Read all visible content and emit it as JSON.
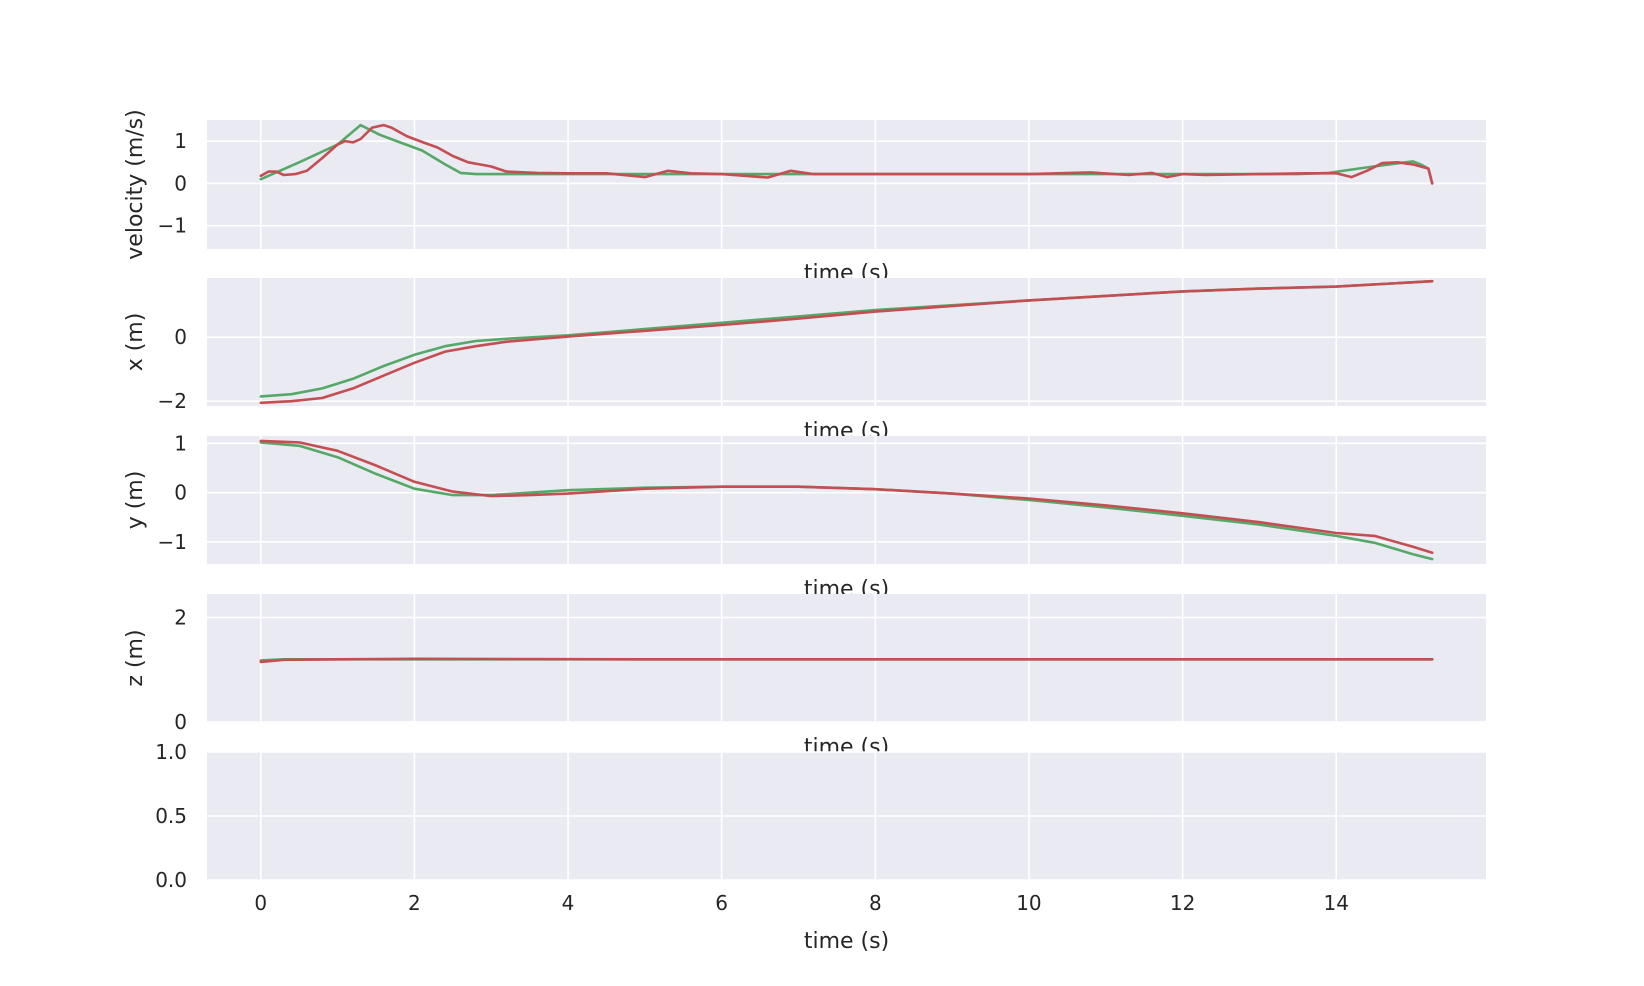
{
  "chart_data": [
    {
      "type": "line",
      "xlabel": "time (s)",
      "ylabel": "velocity (m/s)",
      "ylim": [
        -1.55,
        1.5
      ],
      "yticks": [
        -1,
        0,
        1
      ],
      "xticks": [
        0,
        2,
        4,
        6,
        8,
        10,
        12,
        14
      ],
      "grid": true,
      "series": [
        {
          "color": "#55a868",
          "points": [
            [
              0,
              0.1
            ],
            [
              0.5,
              0.5
            ],
            [
              1.0,
              0.92
            ],
            [
              1.3,
              1.38
            ],
            [
              1.55,
              1.15
            ],
            [
              1.8,
              0.98
            ],
            [
              2.1,
              0.78
            ],
            [
              2.4,
              0.45
            ],
            [
              2.6,
              0.25
            ],
            [
              2.8,
              0.22
            ],
            [
              3.2,
              0.22
            ],
            [
              5,
              0.22
            ],
            [
              10,
              0.22
            ],
            [
              13.5,
              0.22
            ],
            [
              13.9,
              0.25
            ],
            [
              14.4,
              0.38
            ],
            [
              14.9,
              0.5
            ],
            [
              15.0,
              0.52
            ],
            [
              15.1,
              0.45
            ],
            [
              15.2,
              0.35
            ],
            [
              15.25,
              0.0
            ]
          ]
        },
        {
          "color": "#c44e52",
          "points": [
            [
              0,
              0.18
            ],
            [
              0.1,
              0.28
            ],
            [
              0.2,
              0.28
            ],
            [
              0.3,
              0.2
            ],
            [
              0.45,
              0.22
            ],
            [
              0.6,
              0.3
            ],
            [
              0.8,
              0.6
            ],
            [
              1.0,
              0.92
            ],
            [
              1.1,
              1.0
            ],
            [
              1.2,
              0.97
            ],
            [
              1.3,
              1.05
            ],
            [
              1.45,
              1.32
            ],
            [
              1.6,
              1.38
            ],
            [
              1.7,
              1.32
            ],
            [
              1.9,
              1.12
            ],
            [
              2.1,
              0.98
            ],
            [
              2.3,
              0.85
            ],
            [
              2.5,
              0.65
            ],
            [
              2.7,
              0.5
            ],
            [
              2.85,
              0.45
            ],
            [
              3.0,
              0.4
            ],
            [
              3.2,
              0.28
            ],
            [
              3.6,
              0.25
            ],
            [
              4,
              0.24
            ],
            [
              4.5,
              0.24
            ],
            [
              5,
              0.15
            ],
            [
              5.3,
              0.3
            ],
            [
              5.6,
              0.24
            ],
            [
              6,
              0.22
            ],
            [
              6.6,
              0.14
            ],
            [
              6.9,
              0.3
            ],
            [
              7.2,
              0.22
            ],
            [
              8,
              0.22
            ],
            [
              9,
              0.22
            ],
            [
              10,
              0.22
            ],
            [
              10.8,
              0.26
            ],
            [
              11.3,
              0.2
            ],
            [
              11.6,
              0.25
            ],
            [
              11.8,
              0.15
            ],
            [
              12,
              0.22
            ],
            [
              12.3,
              0.2
            ],
            [
              13,
              0.22
            ],
            [
              13.6,
              0.24
            ],
            [
              14.0,
              0.24
            ],
            [
              14.2,
              0.15
            ],
            [
              14.4,
              0.3
            ],
            [
              14.6,
              0.48
            ],
            [
              14.8,
              0.5
            ],
            [
              15.0,
              0.45
            ],
            [
              15.1,
              0.4
            ],
            [
              15.2,
              0.35
            ],
            [
              15.25,
              0.0
            ]
          ]
        }
      ]
    },
    {
      "type": "line",
      "xlabel": "time (s)",
      "ylabel": "x (m)",
      "ylim": [
        -2.15,
        1.85
      ],
      "yticks": [
        -2,
        0
      ],
      "xticks": [
        0,
        2,
        4,
        6,
        8,
        10,
        12,
        14
      ],
      "grid": true,
      "series": [
        {
          "color": "#55a868",
          "points": [
            [
              0,
              -1.85
            ],
            [
              0.4,
              -1.78
            ],
            [
              0.8,
              -1.6
            ],
            [
              1.2,
              -1.3
            ],
            [
              1.6,
              -0.9
            ],
            [
              2.0,
              -0.55
            ],
            [
              2.4,
              -0.28
            ],
            [
              2.8,
              -0.12
            ],
            [
              3.2,
              -0.05
            ],
            [
              4,
              0.06
            ],
            [
              6,
              0.45
            ],
            [
              8,
              0.85
            ],
            [
              10,
              1.15
            ],
            [
              12,
              1.43
            ],
            [
              13,
              1.52
            ],
            [
              14,
              1.58
            ],
            [
              15.25,
              1.75
            ]
          ]
        },
        {
          "color": "#c44e52",
          "points": [
            [
              0,
              -2.05
            ],
            [
              0.4,
              -2.0
            ],
            [
              0.8,
              -1.9
            ],
            [
              1.2,
              -1.6
            ],
            [
              1.6,
              -1.2
            ],
            [
              2.0,
              -0.8
            ],
            [
              2.4,
              -0.45
            ],
            [
              2.8,
              -0.28
            ],
            [
              3.2,
              -0.14
            ],
            [
              4,
              0.02
            ],
            [
              5,
              0.2
            ],
            [
              6,
              0.38
            ],
            [
              7,
              0.58
            ],
            [
              8,
              0.8
            ],
            [
              10,
              1.15
            ],
            [
              12,
              1.43
            ],
            [
              13,
              1.52
            ],
            [
              14,
              1.58
            ],
            [
              15.25,
              1.75
            ]
          ]
        }
      ]
    },
    {
      "type": "line",
      "xlabel": "time (s)",
      "ylabel": "y (m)",
      "ylim": [
        -1.45,
        1.15
      ],
      "yticks": [
        -1,
        0,
        1
      ],
      "xticks": [
        0,
        2,
        4,
        6,
        8,
        10,
        12,
        14
      ],
      "grid": true,
      "series": [
        {
          "color": "#55a868",
          "points": [
            [
              0,
              1.02
            ],
            [
              0.5,
              0.95
            ],
            [
              1.0,
              0.72
            ],
            [
              1.5,
              0.38
            ],
            [
              2.0,
              0.08
            ],
            [
              2.5,
              -0.05
            ],
            [
              3.0,
              -0.05
            ],
            [
              4,
              0.05
            ],
            [
              5,
              0.1
            ],
            [
              6,
              0.12
            ],
            [
              7,
              0.12
            ],
            [
              8,
              0.07
            ],
            [
              9,
              -0.02
            ],
            [
              10,
              -0.15
            ],
            [
              11,
              -0.3
            ],
            [
              12,
              -0.47
            ],
            [
              13,
              -0.65
            ],
            [
              14,
              -0.88
            ],
            [
              14.5,
              -1.02
            ],
            [
              15.0,
              -1.25
            ],
            [
              15.25,
              -1.35
            ]
          ]
        },
        {
          "color": "#c44e52",
          "points": [
            [
              0,
              1.05
            ],
            [
              0.5,
              1.02
            ],
            [
              1.0,
              0.85
            ],
            [
              1.5,
              0.55
            ],
            [
              2.0,
              0.22
            ],
            [
              2.5,
              0.02
            ],
            [
              3.0,
              -0.07
            ],
            [
              3.5,
              -0.05
            ],
            [
              4,
              -0.02
            ],
            [
              5,
              0.08
            ],
            [
              6,
              0.12
            ],
            [
              7,
              0.12
            ],
            [
              8,
              0.07
            ],
            [
              9,
              -0.02
            ],
            [
              10,
              -0.12
            ],
            [
              11,
              -0.26
            ],
            [
              12,
              -0.42
            ],
            [
              13,
              -0.6
            ],
            [
              14,
              -0.82
            ],
            [
              14.5,
              -0.88
            ],
            [
              15.0,
              -1.1
            ],
            [
              15.25,
              -1.22
            ]
          ]
        }
      ]
    },
    {
      "type": "line",
      "xlabel": "time (s)",
      "ylabel": "z (m)",
      "ylim": [
        0,
        2.45
      ],
      "yticks": [
        0,
        2
      ],
      "xticks": [
        0,
        2,
        4,
        6,
        8,
        10,
        12,
        14
      ],
      "grid": true,
      "series": [
        {
          "color": "#55a868",
          "points": [
            [
              0,
              1.18
            ],
            [
              0.3,
              1.2
            ],
            [
              1,
              1.2
            ],
            [
              5,
              1.2
            ],
            [
              10,
              1.2
            ],
            [
              15.25,
              1.2
            ]
          ]
        },
        {
          "color": "#c44e52",
          "points": [
            [
              0,
              1.15
            ],
            [
              0.3,
              1.19
            ],
            [
              1,
              1.2
            ],
            [
              2,
              1.21
            ],
            [
              5,
              1.2
            ],
            [
              10,
              1.2
            ],
            [
              14,
              1.2
            ],
            [
              15.25,
              1.2
            ]
          ]
        }
      ]
    },
    {
      "type": "line",
      "xlabel": "time (s)",
      "ylabel": "",
      "ylim": [
        0,
        1.0
      ],
      "yticks": [
        "0.0",
        "0.5",
        "1.0"
      ],
      "xticks": [
        0,
        2,
        4,
        6,
        8,
        10,
        12,
        14
      ],
      "grid": true,
      "series": []
    }
  ]
}
